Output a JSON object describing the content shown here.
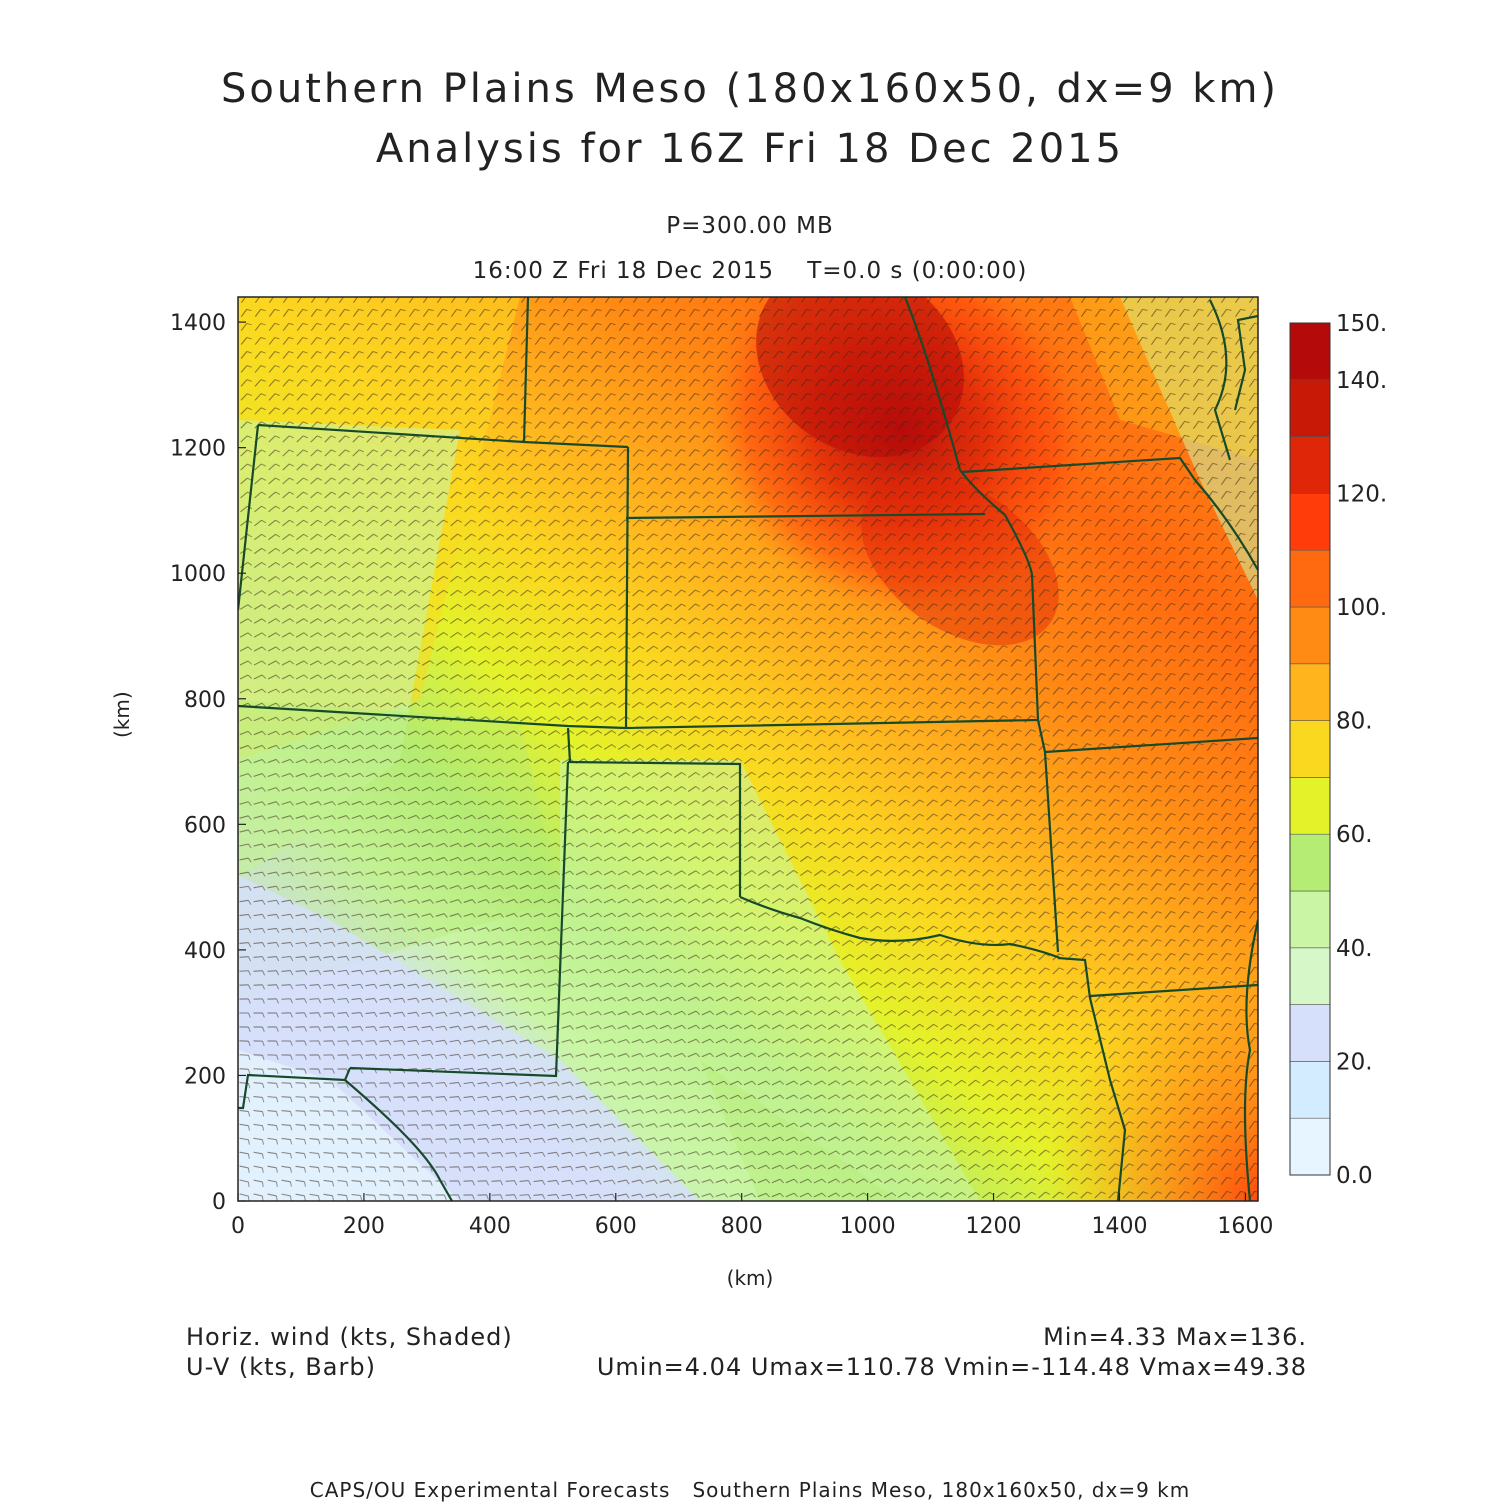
{
  "title": {
    "line1": "Southern Plains Meso (180x160x50, dx=9 km)",
    "line2": "Analysis for 16Z Fri 18 Dec 2015"
  },
  "level_label": "P=300.00 MB",
  "time_label": "16:00 Z Fri 18 Dec 2015    T=0.0 s (0:00:00)",
  "axes": {
    "x_unit": "(km)",
    "y_unit": "(km)",
    "x_ticks": [
      "0",
      "200",
      "400",
      "600",
      "800",
      "1000",
      "1200",
      "1400",
      "1600"
    ],
    "y_ticks": [
      "0",
      "200",
      "400",
      "600",
      "800",
      "1000",
      "1200",
      "1400"
    ],
    "x_range": [
      0,
      1620
    ],
    "y_range": [
      0,
      1440
    ]
  },
  "field": {
    "shaded": "Horiz. wind (kts, Shaded)",
    "barbs": "U-V (kts, Barb)",
    "minmax": "Min=4.33 Max=136.",
    "uv_range": "Umin=4.04 Umax=110.78 Vmin=-114.48 Vmax=49.38"
  },
  "colorbar": {
    "labels": [
      "0.0",
      "20.",
      "40.",
      "60.",
      "80.",
      "100.",
      "120.",
      "140.",
      "150."
    ],
    "colors": [
      "#e6f5ff",
      "#d3ecff",
      "#d6e0fb",
      "#d6f7c8",
      "#c9f5a4",
      "#b4ec74",
      "#e4f22a",
      "#fbd820",
      "#ffb41e",
      "#ff8a14",
      "#ff6a10",
      "#ff3c0a",
      "#e02608",
      "#c81806",
      "#b40a0a"
    ]
  },
  "map": {
    "regions": [
      "Colorado",
      "Kansas",
      "Nebraska",
      "Iowa",
      "Missouri",
      "Oklahoma",
      "Texas",
      "New Mexico",
      "Arkansas"
    ],
    "jet_core_color": "#b41414",
    "boundary_color": "#174a2a"
  },
  "credit": "CAPS/OU Experimental Forecasts   Southern Plains Meso, 180x160x50, dx=9 km"
}
